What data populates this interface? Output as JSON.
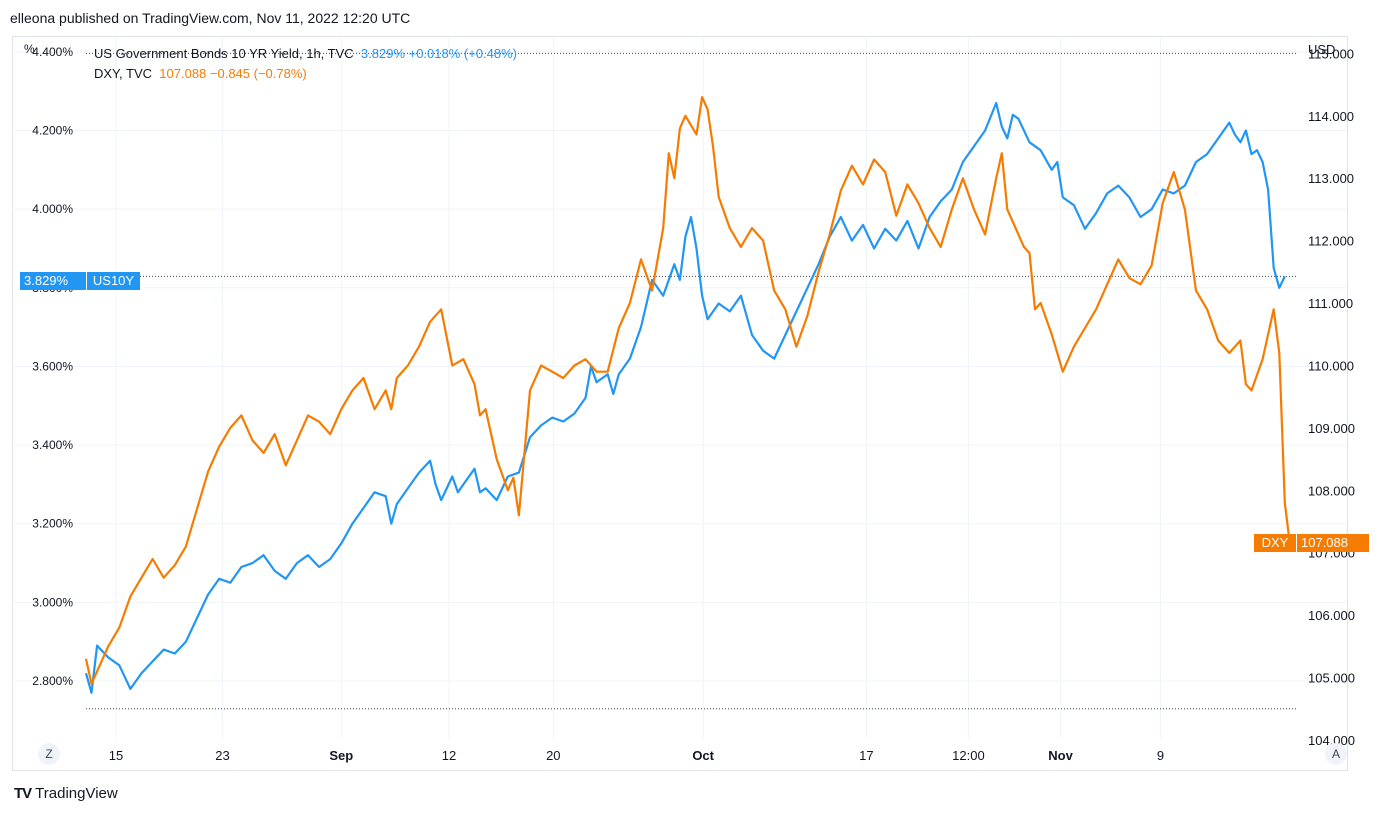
{
  "header": {
    "publisher_text": "elleona published on TradingView.com, Nov 11, 2022 12:20 UTC"
  },
  "brand": {
    "logo": "TV",
    "name": "TradingView"
  },
  "controls": {
    "left_button": "Z",
    "right_button": "A"
  },
  "legend": {
    "series1": {
      "name": "US Government Bonds 10 YR Yield, 1h, TVC",
      "values": "3.829%  +0.018% (+0.48%)"
    },
    "series2": {
      "name": "DXY, TVC",
      "values": "107.088  −0.845 (−0.78%)"
    }
  },
  "badges": {
    "us10y_value": "3.829%",
    "us10y_name": "US10Y",
    "dxy_name": "DXY",
    "dxy_value": "107.088"
  },
  "colors": {
    "us10y": "#2196f3",
    "dxy": "#f57c00",
    "grid": "#f0f3fa"
  },
  "chart_data": {
    "type": "line",
    "title": "US Government Bonds 10 YR Yield vs DXY",
    "x_ticks": [
      {
        "label": "15",
        "t": 0.027,
        "bold": false
      },
      {
        "label": "23",
        "t": 0.123,
        "bold": false
      },
      {
        "label": "Sep",
        "t": 0.23,
        "bold": true
      },
      {
        "label": "12",
        "t": 0.327,
        "bold": false
      },
      {
        "label": "20",
        "t": 0.421,
        "bold": false
      },
      {
        "label": "Oct",
        "t": 0.556,
        "bold": true
      },
      {
        "label": "17",
        "t": 0.703,
        "bold": false
      },
      {
        "label": "12:00",
        "t": 0.795,
        "bold": false
      },
      {
        "label": "Nov",
        "t": 0.878,
        "bold": true
      },
      {
        "label": "9",
        "t": 0.968,
        "bold": false
      }
    ],
    "left_axis": {
      "unit": "%",
      "min": 2.65,
      "max": 4.42,
      "ticks": [
        2.8,
        3.0,
        3.2,
        3.4,
        3.6,
        3.8,
        4.0,
        4.2,
        4.4
      ],
      "tick_labels": [
        "2.800%",
        "3.000%",
        "3.200%",
        "3.400%",
        "3.600%",
        "3.800%",
        "4.000%",
        "4.200%",
        "4.400%"
      ]
    },
    "right_axis": {
      "unit": "USD",
      "min": 104.0,
      "max": 115.15,
      "ticks": [
        104,
        105,
        106,
        107,
        108,
        109,
        110,
        111,
        112,
        113,
        114,
        115
      ],
      "tick_labels": [
        "104.000",
        "105.000",
        "106.000",
        "107.000",
        "108.000",
        "109.000",
        "110.000",
        "111.000",
        "112.000",
        "113.000",
        "114.000",
        "115.000"
      ]
    },
    "reference_lines": {
      "top_dxy": 115.0,
      "bottom_dxy": 104.5
    },
    "series": [
      {
        "name": "US10Y",
        "axis": "left",
        "last": 3.829,
        "points": [
          [
            0.0,
            2.82
          ],
          [
            0.005,
            2.77
          ],
          [
            0.01,
            2.89
          ],
          [
            0.02,
            2.86
          ],
          [
            0.03,
            2.84
          ],
          [
            0.04,
            2.78
          ],
          [
            0.05,
            2.82
          ],
          [
            0.06,
            2.85
          ],
          [
            0.07,
            2.88
          ],
          [
            0.08,
            2.87
          ],
          [
            0.09,
            2.9
          ],
          [
            0.1,
            2.96
          ],
          [
            0.11,
            3.02
          ],
          [
            0.12,
            3.06
          ],
          [
            0.13,
            3.05
          ],
          [
            0.14,
            3.09
          ],
          [
            0.15,
            3.1
          ],
          [
            0.16,
            3.12
          ],
          [
            0.17,
            3.08
          ],
          [
            0.18,
            3.06
          ],
          [
            0.19,
            3.1
          ],
          [
            0.2,
            3.12
          ],
          [
            0.21,
            3.09
          ],
          [
            0.22,
            3.11
          ],
          [
            0.23,
            3.15
          ],
          [
            0.24,
            3.2
          ],
          [
            0.25,
            3.24
          ],
          [
            0.26,
            3.28
          ],
          [
            0.27,
            3.27
          ],
          [
            0.275,
            3.2
          ],
          [
            0.28,
            3.25
          ],
          [
            0.29,
            3.29
          ],
          [
            0.3,
            3.33
          ],
          [
            0.31,
            3.36
          ],
          [
            0.315,
            3.3
          ],
          [
            0.32,
            3.26
          ],
          [
            0.33,
            3.32
          ],
          [
            0.335,
            3.28
          ],
          [
            0.34,
            3.3
          ],
          [
            0.35,
            3.34
          ],
          [
            0.355,
            3.28
          ],
          [
            0.36,
            3.29
          ],
          [
            0.37,
            3.26
          ],
          [
            0.38,
            3.32
          ],
          [
            0.39,
            3.33
          ],
          [
            0.4,
            3.42
          ],
          [
            0.41,
            3.45
          ],
          [
            0.42,
            3.47
          ],
          [
            0.43,
            3.46
          ],
          [
            0.44,
            3.48
          ],
          [
            0.45,
            3.52
          ],
          [
            0.455,
            3.6
          ],
          [
            0.46,
            3.56
          ],
          [
            0.47,
            3.58
          ],
          [
            0.475,
            3.53
          ],
          [
            0.48,
            3.58
          ],
          [
            0.49,
            3.62
          ],
          [
            0.5,
            3.7
          ],
          [
            0.51,
            3.82
          ],
          [
            0.52,
            3.78
          ],
          [
            0.53,
            3.86
          ],
          [
            0.535,
            3.82
          ],
          [
            0.54,
            3.93
          ],
          [
            0.545,
            3.98
          ],
          [
            0.55,
            3.9
          ],
          [
            0.555,
            3.78
          ],
          [
            0.56,
            3.72
          ],
          [
            0.57,
            3.76
          ],
          [
            0.58,
            3.74
          ],
          [
            0.59,
            3.78
          ],
          [
            0.6,
            3.68
          ],
          [
            0.61,
            3.64
          ],
          [
            0.62,
            3.62
          ],
          [
            0.63,
            3.68
          ],
          [
            0.64,
            3.74
          ],
          [
            0.65,
            3.8
          ],
          [
            0.66,
            3.86
          ],
          [
            0.67,
            3.93
          ],
          [
            0.68,
            3.98
          ],
          [
            0.69,
            3.92
          ],
          [
            0.7,
            3.96
          ],
          [
            0.71,
            3.9
          ],
          [
            0.72,
            3.95
          ],
          [
            0.73,
            3.92
          ],
          [
            0.74,
            3.97
          ],
          [
            0.75,
            3.9
          ],
          [
            0.76,
            3.98
          ],
          [
            0.77,
            4.02
          ],
          [
            0.78,
            4.05
          ],
          [
            0.79,
            4.12
          ],
          [
            0.8,
            4.16
          ],
          [
            0.81,
            4.2
          ],
          [
            0.82,
            4.27
          ],
          [
            0.825,
            4.21
          ],
          [
            0.83,
            4.18
          ],
          [
            0.835,
            4.24
          ],
          [
            0.84,
            4.23
          ],
          [
            0.85,
            4.17
          ],
          [
            0.86,
            4.15
          ],
          [
            0.87,
            4.1
          ],
          [
            0.875,
            4.12
          ],
          [
            0.88,
            4.03
          ],
          [
            0.89,
            4.01
          ],
          [
            0.9,
            3.95
          ],
          [
            0.91,
            3.99
          ],
          [
            0.92,
            4.04
          ],
          [
            0.93,
            4.06
          ],
          [
            0.94,
            4.03
          ],
          [
            0.95,
            3.98
          ],
          [
            0.96,
            4.0
          ],
          [
            0.97,
            4.05
          ],
          [
            0.98,
            4.04
          ],
          [
            0.99,
            4.06
          ],
          [
            1.0,
            4.12
          ],
          [
            1.01,
            4.14
          ],
          [
            1.02,
            4.18
          ],
          [
            1.03,
            4.22
          ],
          [
            1.035,
            4.19
          ],
          [
            1.04,
            4.17
          ],
          [
            1.045,
            4.2
          ],
          [
            1.05,
            4.14
          ],
          [
            1.055,
            4.15
          ],
          [
            1.06,
            4.12
          ],
          [
            1.065,
            4.05
          ],
          [
            1.07,
            3.85
          ],
          [
            1.075,
            3.8
          ],
          [
            1.08,
            3.829
          ]
        ]
      },
      {
        "name": "DXY",
        "axis": "right",
        "last": 107.088,
        "points": [
          [
            0.0,
            105.3
          ],
          [
            0.005,
            104.9
          ],
          [
            0.01,
            105.1
          ],
          [
            0.02,
            105.5
          ],
          [
            0.03,
            105.8
          ],
          [
            0.04,
            106.3
          ],
          [
            0.05,
            106.6
          ],
          [
            0.06,
            106.9
          ],
          [
            0.07,
            106.6
          ],
          [
            0.08,
            106.8
          ],
          [
            0.09,
            107.1
          ],
          [
            0.1,
            107.7
          ],
          [
            0.11,
            108.3
          ],
          [
            0.12,
            108.7
          ],
          [
            0.13,
            109.0
          ],
          [
            0.14,
            109.2
          ],
          [
            0.15,
            108.8
          ],
          [
            0.16,
            108.6
          ],
          [
            0.17,
            108.9
          ],
          [
            0.18,
            108.4
          ],
          [
            0.19,
            108.8
          ],
          [
            0.2,
            109.2
          ],
          [
            0.21,
            109.1
          ],
          [
            0.22,
            108.9
          ],
          [
            0.23,
            109.3
          ],
          [
            0.24,
            109.6
          ],
          [
            0.25,
            109.8
          ],
          [
            0.26,
            109.3
          ],
          [
            0.27,
            109.6
          ],
          [
            0.275,
            109.3
          ],
          [
            0.28,
            109.8
          ],
          [
            0.29,
            110.0
          ],
          [
            0.3,
            110.3
          ],
          [
            0.31,
            110.7
          ],
          [
            0.32,
            110.9
          ],
          [
            0.33,
            110.0
          ],
          [
            0.34,
            110.1
          ],
          [
            0.35,
            109.7
          ],
          [
            0.355,
            109.2
          ],
          [
            0.36,
            109.3
          ],
          [
            0.37,
            108.5
          ],
          [
            0.38,
            108.0
          ],
          [
            0.385,
            108.2
          ],
          [
            0.39,
            107.6
          ],
          [
            0.4,
            109.6
          ],
          [
            0.41,
            110.0
          ],
          [
            0.42,
            109.9
          ],
          [
            0.43,
            109.8
          ],
          [
            0.44,
            110.0
          ],
          [
            0.45,
            110.1
          ],
          [
            0.46,
            109.9
          ],
          [
            0.47,
            109.9
          ],
          [
            0.48,
            110.6
          ],
          [
            0.49,
            111.0
          ],
          [
            0.5,
            111.7
          ],
          [
            0.51,
            111.2
          ],
          [
            0.52,
            112.2
          ],
          [
            0.525,
            113.4
          ],
          [
            0.53,
            113.0
          ],
          [
            0.535,
            113.8
          ],
          [
            0.54,
            114.0
          ],
          [
            0.55,
            113.7
          ],
          [
            0.555,
            114.3
          ],
          [
            0.56,
            114.1
          ],
          [
            0.565,
            113.5
          ],
          [
            0.57,
            112.7
          ],
          [
            0.58,
            112.2
          ],
          [
            0.59,
            111.9
          ],
          [
            0.6,
            112.2
          ],
          [
            0.61,
            112.0
          ],
          [
            0.62,
            111.2
          ],
          [
            0.63,
            110.9
          ],
          [
            0.64,
            110.3
          ],
          [
            0.65,
            110.8
          ],
          [
            0.66,
            111.5
          ],
          [
            0.67,
            112.1
          ],
          [
            0.68,
            112.8
          ],
          [
            0.69,
            113.2
          ],
          [
            0.7,
            112.9
          ],
          [
            0.71,
            113.3
          ],
          [
            0.72,
            113.1
          ],
          [
            0.73,
            112.4
          ],
          [
            0.74,
            112.9
          ],
          [
            0.75,
            112.6
          ],
          [
            0.76,
            112.2
          ],
          [
            0.77,
            111.9
          ],
          [
            0.78,
            112.5
          ],
          [
            0.79,
            113.0
          ],
          [
            0.8,
            112.5
          ],
          [
            0.81,
            112.1
          ],
          [
            0.82,
            113.0
          ],
          [
            0.825,
            113.4
          ],
          [
            0.83,
            112.5
          ],
          [
            0.84,
            112.1
          ],
          [
            0.845,
            111.9
          ],
          [
            0.85,
            111.8
          ],
          [
            0.855,
            110.9
          ],
          [
            0.86,
            111.0
          ],
          [
            0.87,
            110.5
          ],
          [
            0.875,
            110.2
          ],
          [
            0.88,
            109.9
          ],
          [
            0.89,
            110.3
          ],
          [
            0.9,
            110.6
          ],
          [
            0.91,
            110.9
          ],
          [
            0.92,
            111.3
          ],
          [
            0.93,
            111.7
          ],
          [
            0.94,
            111.4
          ],
          [
            0.95,
            111.3
          ],
          [
            0.96,
            111.6
          ],
          [
            0.97,
            112.6
          ],
          [
            0.98,
            113.1
          ],
          [
            0.99,
            112.5
          ],
          [
            1.0,
            111.2
          ],
          [
            1.01,
            110.9
          ],
          [
            1.02,
            110.4
          ],
          [
            1.03,
            110.2
          ],
          [
            1.04,
            110.4
          ],
          [
            1.045,
            109.7
          ],
          [
            1.05,
            109.6
          ],
          [
            1.06,
            110.1
          ],
          [
            1.065,
            110.5
          ],
          [
            1.07,
            110.9
          ],
          [
            1.075,
            110.2
          ],
          [
            1.08,
            107.8
          ],
          [
            1.085,
            107.088
          ]
        ]
      }
    ]
  }
}
